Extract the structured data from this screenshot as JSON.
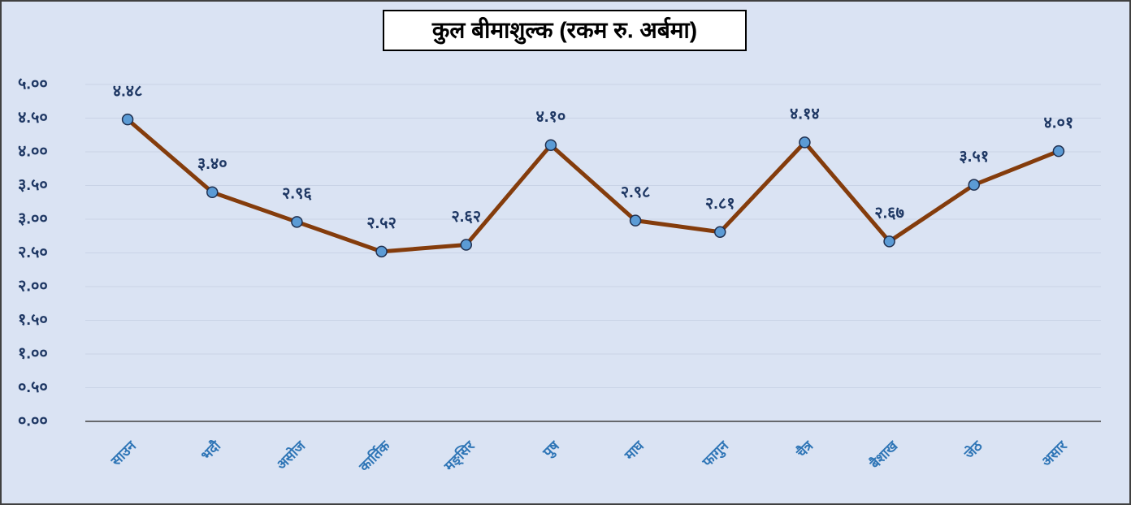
{
  "chart_data": {
    "type": "line",
    "title": "कुल बीमाशुल्क (रकम रु. अर्बमा)",
    "categories": [
      "साउन",
      "भदौ",
      "असोज",
      "कार्तिक",
      "मङ्सिर",
      "पुष",
      "माघ",
      "फागुन",
      "चैत्र",
      "बैशाख",
      "जेठ",
      "असार"
    ],
    "series": [
      {
        "color": "#843c0c",
        "marker_color": "#5b9bd5",
        "values": [
          4.48,
          3.4,
          2.96,
          2.52,
          2.62,
          4.1,
          2.98,
          2.81,
          4.14,
          2.67,
          3.51,
          4.01
        ],
        "value_labels": [
          "४.४८",
          "३.४०",
          "२.९६",
          "२.५२",
          "२.६२",
          "४.१०",
          "२.९८",
          "२.८१",
          "४.१४",
          "२.६७",
          "३.५१",
          "४.०१"
        ]
      }
    ],
    "ylim": [
      0,
      5
    ],
    "yticks": [
      {
        "value": 0,
        "label": "०.००"
      },
      {
        "value": 0.5,
        "label": "०.५०"
      },
      {
        "value": 1,
        "label": "१.००"
      },
      {
        "value": 1.5,
        "label": "१.५०"
      },
      {
        "value": 2,
        "label": "२.००"
      },
      {
        "value": 2.5,
        "label": "२.५०"
      },
      {
        "value": 3,
        "label": "३.००"
      },
      {
        "value": 3.5,
        "label": "३.५०"
      },
      {
        "value": 4,
        "label": "४.००"
      },
      {
        "value": 4.5,
        "label": "४.५०"
      },
      {
        "value": 5,
        "label": "५.००"
      }
    ],
    "grid": true
  }
}
